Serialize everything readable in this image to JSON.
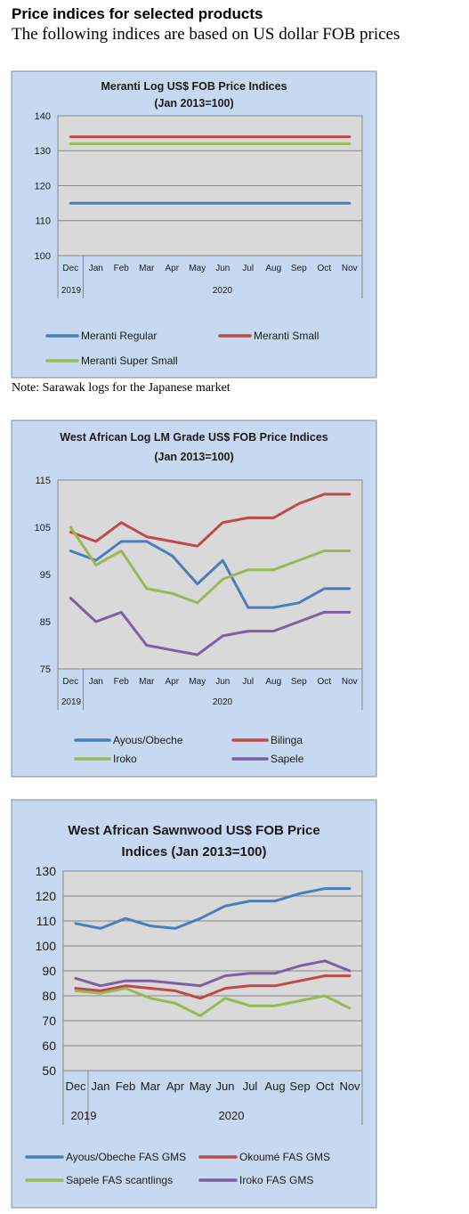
{
  "header": {
    "title": "Price indices for selected products",
    "subtitle": "The following indices are based on US dollar FOB prices"
  },
  "note": "Note: Sarawak logs for the Japanese market",
  "chart_data": [
    {
      "type": "line",
      "title": [
        "Meranti Log US$ FOB Price Indices",
        "(Jan 2013=100)"
      ],
      "categories": [
        "Dec",
        "Jan",
        "Feb",
        "Mar",
        "Apr",
        "May",
        "Jun",
        "Jul",
        "Aug",
        "Sep",
        "Oct",
        "Nov"
      ],
      "year_labels": [
        "2019",
        "2020"
      ],
      "ylim": [
        100,
        140
      ],
      "yticks": [
        100,
        110,
        120,
        130,
        140
      ],
      "grid": "horizontal",
      "legend": "bottom",
      "series": [
        {
          "name": "Meranti Regular",
          "color": "#4a7ebb",
          "values": [
            115,
            115,
            115,
            115,
            115,
            115,
            115,
            115,
            115,
            115,
            115,
            115
          ]
        },
        {
          "name": "Meranti Small",
          "color": "#be4b48",
          "values": [
            134,
            134,
            134,
            134,
            134,
            134,
            134,
            134,
            134,
            134,
            134,
            134
          ]
        },
        {
          "name": "Meranti Super Small",
          "color": "#98b954",
          "values": [
            132,
            132,
            132,
            132,
            132,
            132,
            132,
            132,
            132,
            132,
            132,
            132
          ]
        }
      ]
    },
    {
      "type": "line",
      "title": [
        "West African Log LM Grade US$ FOB Price Indices",
        "(Jan 2013=100)"
      ],
      "categories": [
        "Dec",
        "Jan",
        "Feb",
        "Mar",
        "Apr",
        "May",
        "Jun",
        "Jul",
        "Aug",
        "Sep",
        "Oct",
        "Nov"
      ],
      "year_labels": [
        "2019",
        "2020"
      ],
      "ylim": [
        75,
        115
      ],
      "yticks": [
        75,
        85,
        95,
        105,
        115
      ],
      "grid": "none",
      "legend": "bottom",
      "series": [
        {
          "name": "Ayous/Obeche",
          "color": "#4a7ebb",
          "values": [
            100,
            98,
            102,
            102,
            99,
            93,
            98,
            88,
            88,
            89,
            92,
            92
          ]
        },
        {
          "name": "Bilinga",
          "color": "#be4b48",
          "values": [
            104,
            102,
            106,
            103,
            102,
            101,
            106,
            107,
            107,
            110,
            112,
            112
          ]
        },
        {
          "name": "Iroko",
          "color": "#98b954",
          "values": [
            105,
            97,
            100,
            92,
            91,
            89,
            94,
            96,
            96,
            98,
            100,
            100
          ]
        },
        {
          "name": "Sapele",
          "color": "#7d60a0",
          "values": [
            90,
            85,
            87,
            80,
            79,
            78,
            82,
            83,
            83,
            85,
            87,
            87
          ]
        }
      ]
    },
    {
      "type": "line",
      "title": [
        "West African Sawnwood US$ FOB Price",
        "Indices (Jan 2013=100)"
      ],
      "categories": [
        "Dec",
        "Jan",
        "Feb",
        "Mar",
        "Apr",
        "May",
        "Jun",
        "Jul",
        "Aug",
        "Sep",
        "Oct",
        "Nov"
      ],
      "year_labels": [
        "2019",
        "2020"
      ],
      "ylim": [
        50,
        130
      ],
      "yticks": [
        50,
        60,
        70,
        80,
        90,
        100,
        110,
        120,
        130
      ],
      "grid": "horizontal",
      "legend": "bottom",
      "series": [
        {
          "name": "Ayous/Obeche  FAS GMS",
          "color": "#4a7ebb",
          "values": [
            109,
            107,
            111,
            108,
            107,
            111,
            116,
            118,
            118,
            121,
            123,
            123
          ]
        },
        {
          "name": "Okoumé  FAS GMS",
          "color": "#be4b48",
          "values": [
            83,
            82,
            84,
            83,
            82,
            79,
            83,
            84,
            84,
            86,
            88,
            88
          ]
        },
        {
          "name": "Sapele FAS scantlings",
          "color": "#98b954",
          "values": [
            82,
            81,
            83,
            79,
            77,
            72,
            79,
            76,
            76,
            78,
            80,
            75
          ]
        },
        {
          "name": "Iroko FAS GMS",
          "color": "#7d60a0",
          "values": [
            87,
            84,
            86,
            86,
            85,
            84,
            88,
            89,
            89,
            92,
            94,
            90
          ]
        }
      ]
    }
  ]
}
